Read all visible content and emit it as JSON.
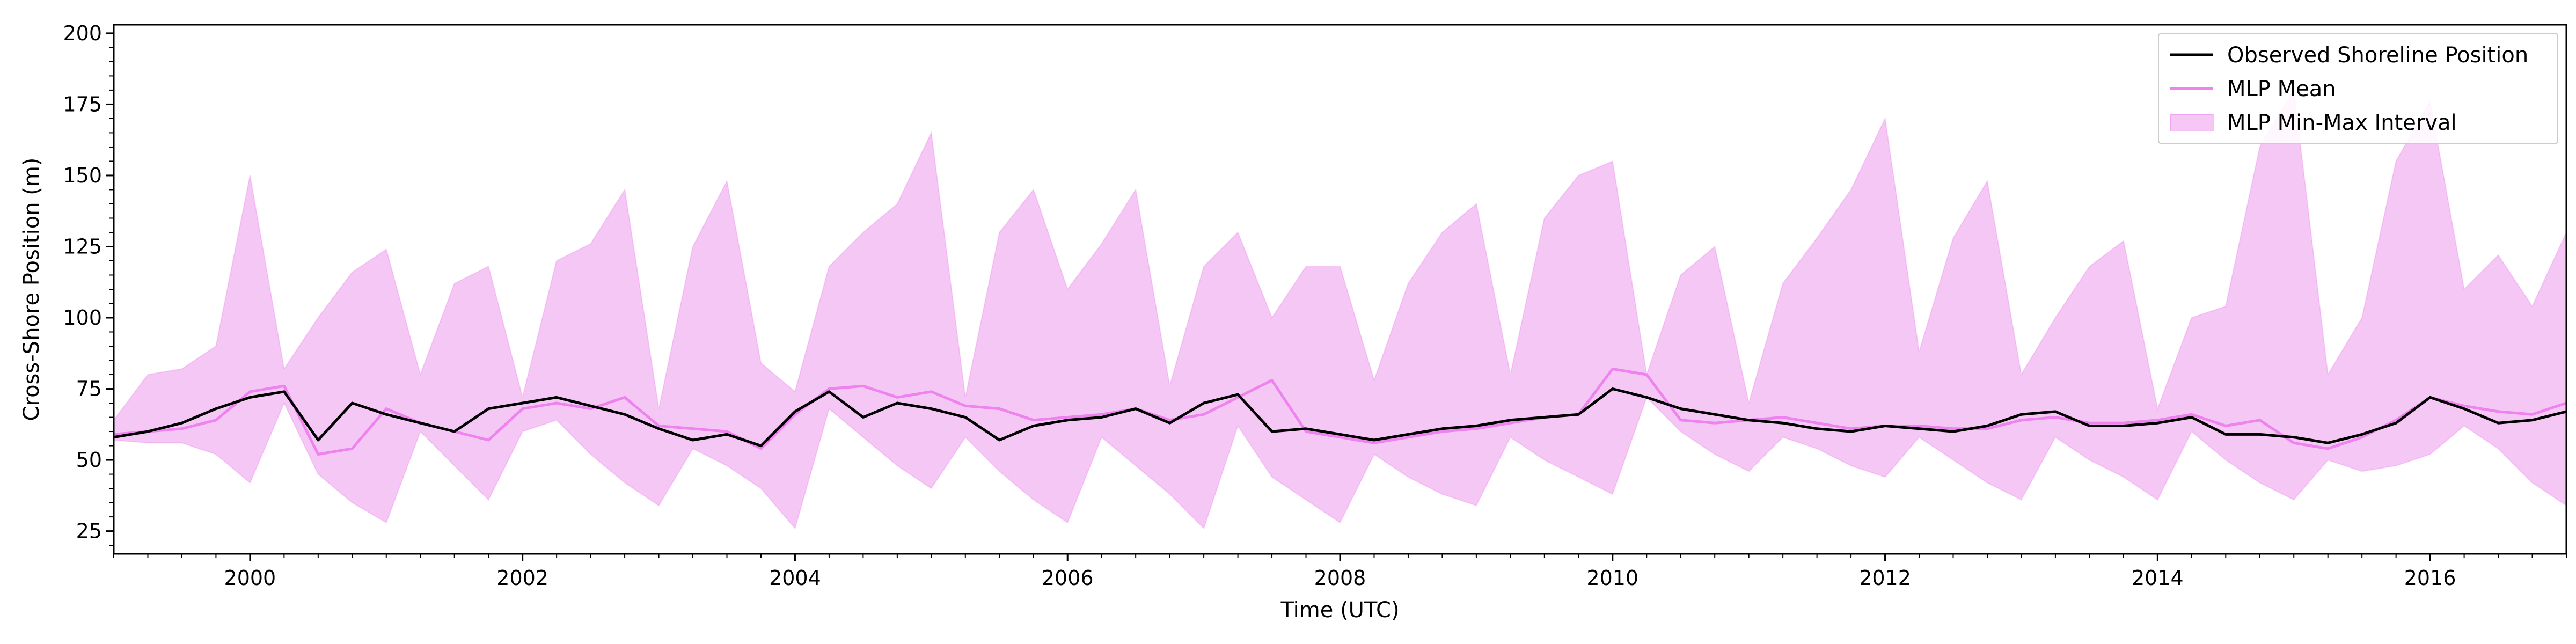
{
  "chart_data": {
    "type": "line",
    "title": "",
    "xlabel": "Time (UTC)",
    "ylabel": "Cross-Shore Position (m)",
    "xlim": [
      1999.0,
      2017.0
    ],
    "ylim": [
      17,
      203
    ],
    "x_ticks": [
      2000,
      2002,
      2004,
      2006,
      2008,
      2010,
      2012,
      2014,
      2016
    ],
    "x_tick_labels": [
      "2000",
      "2002",
      "2004",
      "2006",
      "2008",
      "2010",
      "2012",
      "2014",
      "2016"
    ],
    "y_ticks": [
      25,
      50,
      75,
      100,
      125,
      150,
      175,
      200
    ],
    "y_tick_labels": [
      "25",
      "50",
      "75",
      "100",
      "125",
      "150",
      "175",
      "200"
    ],
    "legend": {
      "position": "top-right",
      "entries": [
        "Observed Shoreline Position",
        "MLP Mean",
        "MLP Min-Max Interval"
      ]
    },
    "colors": {
      "observed": "#000000",
      "mean": "#ee82ee",
      "interval_fill": "#f5c7f5",
      "interval_edge": "#ee82ee"
    },
    "series": [
      {
        "name": "Observed Shoreline Position",
        "x": [
          1999.0,
          1999.25,
          1999.5,
          1999.75,
          2000.0,
          2000.25,
          2000.5,
          2000.75,
          2001.0,
          2001.25,
          2001.5,
          2001.75,
          2002.0,
          2002.25,
          2002.5,
          2002.75,
          2003.0,
          2003.25,
          2003.5,
          2003.75,
          2004.0,
          2004.25,
          2004.5,
          2004.75,
          2005.0,
          2005.25,
          2005.5,
          2005.75,
          2006.0,
          2006.25,
          2006.5,
          2006.75,
          2007.0,
          2007.25,
          2007.5,
          2007.75,
          2008.0,
          2008.25,
          2008.5,
          2008.75,
          2009.0,
          2009.25,
          2009.5,
          2009.75,
          2010.0,
          2010.25,
          2010.5,
          2010.75,
          2011.0,
          2011.25,
          2011.5,
          2011.75,
          2012.0,
          2012.25,
          2012.5,
          2012.75,
          2013.0,
          2013.25,
          2013.5,
          2013.75,
          2014.0,
          2014.25,
          2014.5,
          2014.75,
          2015.0,
          2015.25,
          2015.5,
          2015.75,
          2016.0,
          2016.25,
          2016.5,
          2016.75,
          2017.0
        ],
        "y": [
          58,
          60,
          63,
          68,
          72,
          74,
          57,
          70,
          66,
          63,
          60,
          68,
          70,
          72,
          69,
          66,
          61,
          57,
          59,
          55,
          67,
          74,
          65,
          70,
          68,
          65,
          57,
          62,
          64,
          65,
          68,
          63,
          70,
          73,
          60,
          61,
          59,
          57,
          59,
          61,
          62,
          64,
          65,
          66,
          75,
          72,
          68,
          66,
          64,
          63,
          61,
          60,
          62,
          61,
          60,
          62,
          66,
          67,
          62,
          62,
          63,
          65,
          59,
          59,
          58,
          56,
          59,
          63,
          72,
          68,
          63,
          64,
          67
        ]
      },
      {
        "name": "MLP Mean",
        "x": [
          1999.0,
          1999.25,
          1999.5,
          1999.75,
          2000.0,
          2000.25,
          2000.5,
          2000.75,
          2001.0,
          2001.25,
          2001.5,
          2001.75,
          2002.0,
          2002.25,
          2002.5,
          2002.75,
          2003.0,
          2003.25,
          2003.5,
          2003.75,
          2004.0,
          2004.25,
          2004.5,
          2004.75,
          2005.0,
          2005.25,
          2005.5,
          2005.75,
          2006.0,
          2006.25,
          2006.5,
          2006.75,
          2007.0,
          2007.25,
          2007.5,
          2007.75,
          2008.0,
          2008.25,
          2008.5,
          2008.75,
          2009.0,
          2009.25,
          2009.5,
          2009.75,
          2010.0,
          2010.25,
          2010.5,
          2010.75,
          2011.0,
          2011.25,
          2011.5,
          2011.75,
          2012.0,
          2012.25,
          2012.5,
          2012.75,
          2013.0,
          2013.25,
          2013.5,
          2013.75,
          2014.0,
          2014.25,
          2014.5,
          2014.75,
          2015.0,
          2015.25,
          2015.5,
          2015.75,
          2016.0,
          2016.25,
          2016.5,
          2016.75,
          2017.0
        ],
        "y": [
          59,
          60,
          61,
          64,
          74,
          76,
          52,
          54,
          68,
          63,
          60,
          57,
          68,
          70,
          68,
          72,
          62,
          61,
          60,
          54,
          66,
          75,
          76,
          72,
          74,
          69,
          68,
          64,
          65,
          66,
          68,
          64,
          66,
          72,
          78,
          60,
          58,
          56,
          58,
          60,
          61,
          63,
          65,
          66,
          82,
          80,
          64,
          63,
          64,
          65,
          63,
          61,
          62,
          62,
          61,
          61,
          64,
          65,
          63,
          63,
          64,
          66,
          62,
          64,
          56,
          54,
          58,
          64,
          72,
          69,
          67,
          66,
          70
        ]
      },
      {
        "name": "MLP Min-Max Interval",
        "x": [
          1999.0,
          1999.25,
          1999.5,
          1999.75,
          2000.0,
          2000.25,
          2000.5,
          2000.75,
          2001.0,
          2001.25,
          2001.5,
          2001.75,
          2002.0,
          2002.25,
          2002.5,
          2002.75,
          2003.0,
          2003.25,
          2003.5,
          2003.75,
          2004.0,
          2004.25,
          2004.5,
          2004.75,
          2005.0,
          2005.25,
          2005.5,
          2005.75,
          2006.0,
          2006.25,
          2006.5,
          2006.75,
          2007.0,
          2007.25,
          2007.5,
          2007.75,
          2008.0,
          2008.25,
          2008.5,
          2008.75,
          2009.0,
          2009.25,
          2009.5,
          2009.75,
          2010.0,
          2010.25,
          2010.5,
          2010.75,
          2011.0,
          2011.25,
          2011.5,
          2011.75,
          2012.0,
          2012.25,
          2012.5,
          2012.75,
          2013.0,
          2013.25,
          2013.5,
          2013.75,
          2014.0,
          2014.25,
          2014.5,
          2014.75,
          2015.0,
          2015.25,
          2015.5,
          2015.75,
          2016.0,
          2016.25,
          2016.5,
          2016.75,
          2017.0
        ],
        "lower": [
          57,
          56,
          56,
          52,
          42,
          70,
          45,
          35,
          28,
          60,
          48,
          36,
          60,
          64,
          52,
          42,
          34,
          54,
          48,
          40,
          26,
          68,
          58,
          48,
          40,
          58,
          46,
          36,
          28,
          58,
          48,
          38,
          26,
          62,
          44,
          36,
          28,
          52,
          44,
          38,
          34,
          58,
          50,
          44,
          38,
          72,
          60,
          52,
          46,
          58,
          54,
          48,
          44,
          58,
          50,
          42,
          36,
          58,
          50,
          44,
          36,
          60,
          50,
          42,
          36,
          50,
          46,
          48,
          52,
          62,
          54,
          42,
          34
        ],
        "upper": [
          64,
          80,
          82,
          90,
          150,
          82,
          100,
          116,
          124,
          80,
          112,
          118,
          72,
          120,
          126,
          145,
          68,
          125,
          148,
          84,
          74,
          118,
          130,
          140,
          165,
          72,
          130,
          145,
          110,
          126,
          145,
          76,
          118,
          130,
          100,
          118,
          118,
          78,
          112,
          130,
          140,
          80,
          135,
          150,
          155,
          80,
          115,
          125,
          70,
          112,
          128,
          145,
          170,
          88,
          128,
          148,
          80,
          100,
          118,
          127,
          68,
          100,
          104,
          160,
          180,
          80,
          100,
          155,
          176,
          110,
          122,
          104,
          130
        ]
      }
    ]
  }
}
